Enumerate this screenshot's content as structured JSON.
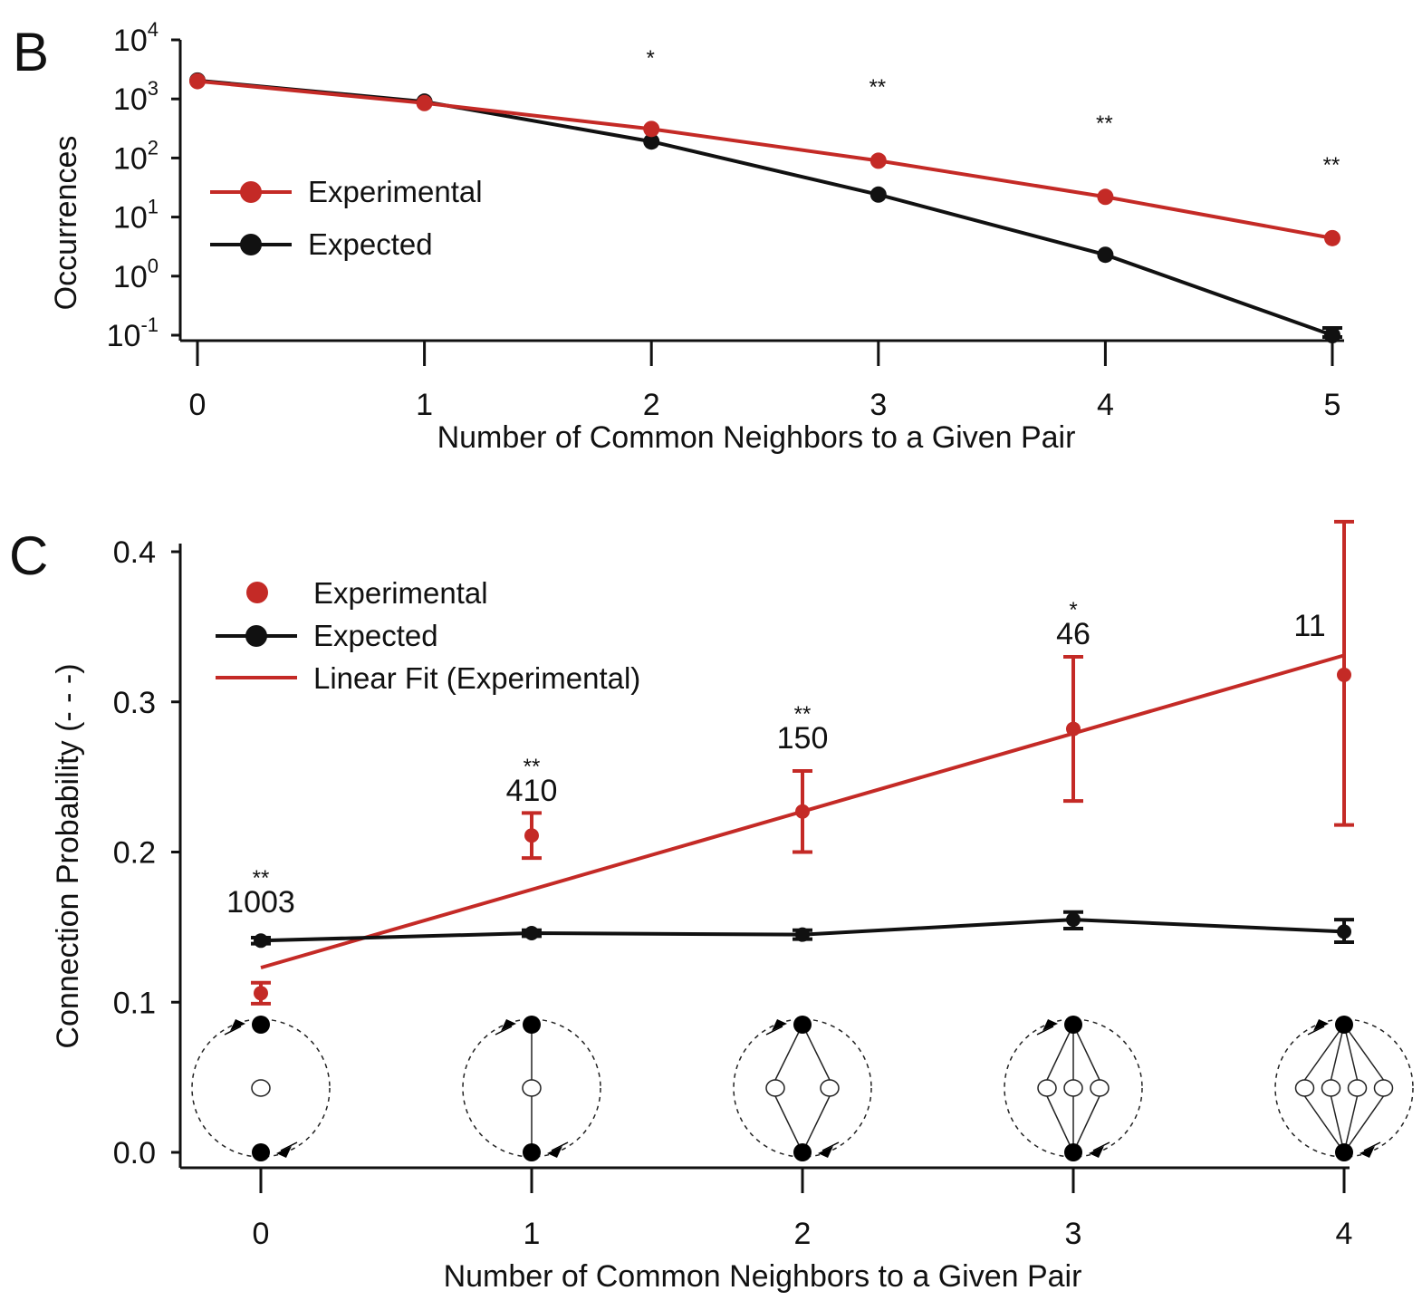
{
  "colors": {
    "experimental": "#c42a26",
    "expected": "#111111"
  },
  "chart_data": [
    {
      "panel": "B",
      "type": "line",
      "xlabel": "Number of Common Neighbors to a Given Pair",
      "ylabel": "Occurrences",
      "yscale": "log",
      "ylim": [
        0.1,
        10000
      ],
      "x": [
        0,
        1,
        2,
        3,
        4,
        5
      ],
      "x_ticks": [
        "0",
        "1",
        "2",
        "3",
        "4",
        "5"
      ],
      "y_ticks": [
        {
          "value": 0.1,
          "base": "10",
          "exp": "-1"
        },
        {
          "value": 1,
          "base": "10",
          "exp": "0"
        },
        {
          "value": 10,
          "base": "10",
          "exp": "1"
        },
        {
          "value": 100,
          "base": "10",
          "exp": "2"
        },
        {
          "value": 1000,
          "base": "10",
          "exp": "3"
        },
        {
          "value": 10000,
          "base": "10",
          "exp": "4"
        }
      ],
      "series": [
        {
          "name": "Experimental",
          "values": [
            2000,
            850,
            310,
            90,
            22,
            4.4
          ]
        },
        {
          "name": "Expected",
          "values": [
            2050,
            900,
            190,
            24,
            2.3,
            0.1
          ]
        }
      ],
      "significance": [
        "",
        "",
        "*",
        "**",
        "**",
        "**"
      ],
      "legend": "upper-left"
    },
    {
      "panel": "C",
      "type": "scatter",
      "xlabel": "Number of Common Neighbors to a Given Pair",
      "ylabel": "Connection Probability (- - -)",
      "ylim": [
        0,
        0.4
      ],
      "x": [
        0,
        1,
        2,
        3,
        4
      ],
      "x_ticks": [
        "0",
        "1",
        "2",
        "3",
        "4"
      ],
      "y_ticks": [
        "0.0",
        "0.1",
        "0.2",
        "0.3",
        "0.4"
      ],
      "series": [
        {
          "name": "Experimental",
          "values": [
            0.106,
            0.211,
            0.227,
            0.282,
            0.318
          ],
          "err_low": [
            0.099,
            0.196,
            0.2,
            0.234,
            0.218
          ],
          "err_high": [
            0.113,
            0.226,
            0.254,
            0.33,
            0.42
          ]
        },
        {
          "name": "Expected",
          "values": [
            0.141,
            0.146,
            0.145,
            0.155,
            0.147
          ],
          "err_low": [
            0.139,
            0.144,
            0.142,
            0.149,
            0.14
          ],
          "err_high": [
            0.143,
            0.148,
            0.148,
            0.16,
            0.155
          ]
        },
        {
          "name": "Linear Fit (Experimental)",
          "x": [
            0,
            4
          ],
          "values": [
            0.123,
            0.331
          ]
        }
      ],
      "counts": [
        "1003",
        "410",
        "150",
        "46",
        "11"
      ],
      "significance": [
        "**",
        "**",
        "**",
        "*",
        ""
      ],
      "legend": "upper-left",
      "schematics": [
        0,
        1,
        2,
        3,
        4
      ]
    }
  ],
  "panels": {
    "b_label": "B",
    "c_label": "C"
  }
}
